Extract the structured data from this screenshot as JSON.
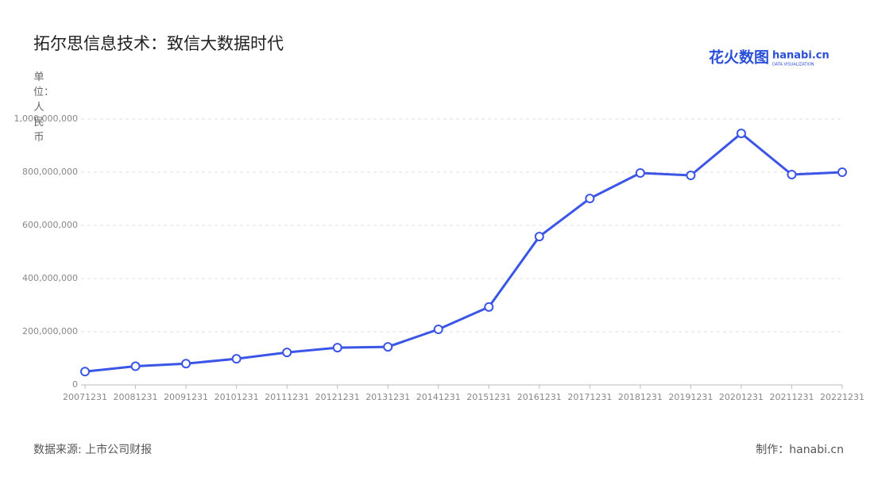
{
  "chart_data": {
    "type": "line",
    "title": "拓尔思信息技术：致信大数据时代",
    "y_label": "单位：人民币",
    "source": "数据来源: 上市公司财报",
    "credit": "制作：hanabi.cn",
    "logo": {
      "name": "花火数图",
      "site": "hanabi.cn",
      "tagline": "DATA VISUALIZATION"
    },
    "categories": [
      "20071231",
      "20081231",
      "20091231",
      "20101231",
      "20111231",
      "20121231",
      "20131231",
      "20141231",
      "20151231",
      "20161231",
      "20171231",
      "20181231",
      "20191231",
      "20201231",
      "20211231",
      "20221231"
    ],
    "values": [
      50000000,
      70000000,
      80000000,
      98000000,
      122000000,
      140000000,
      143000000,
      209000000,
      293000000,
      558000000,
      701000000,
      797000000,
      788000000,
      946000000,
      791000000,
      800000000
    ],
    "color": "#3b55e6",
    "ylim": [
      0,
      1000000000
    ],
    "yticks": [
      0,
      {
        "value": 200000000,
        "label": "200,000,000"
      },
      {
        "value": 400000000,
        "label": "400,000,000"
      },
      {
        "value": 600000000,
        "label": "600,000,000"
      },
      {
        "value": 800000000,
        "label": "800,000,000"
      },
      {
        "value": 1000000000,
        "label": "1,000,000,000"
      }
    ],
    "grid": true
  }
}
